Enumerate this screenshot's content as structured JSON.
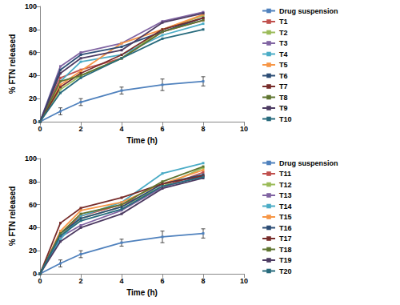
{
  "chart_data": [
    {
      "type": "line",
      "x_label": "Time (h)",
      "y_label": "% FTN released",
      "x": [
        0,
        1,
        2,
        4,
        6,
        8
      ],
      "xlim": [
        0,
        10
      ],
      "xticks": [
        0,
        2,
        4,
        6,
        8,
        10
      ],
      "ylim": [
        0,
        100
      ],
      "yticks": [
        0,
        20,
        40,
        60,
        80,
        100
      ],
      "grid": false,
      "legend": "right",
      "marker": "square",
      "series": [
        {
          "name": "Drug suspension",
          "color": "#4f81bd",
          "values": [
            0,
            9,
            17,
            27,
            32,
            35
          ],
          "errors": [
            0,
            3,
            3,
            3,
            5,
            4
          ]
        },
        {
          "name": "T1",
          "color": "#c0504d",
          "values": [
            0,
            38,
            45,
            55,
            78,
            88
          ]
        },
        {
          "name": "T2",
          "color": "#9bbb59",
          "values": [
            0,
            28,
            40,
            55,
            80,
            92
          ]
        },
        {
          "name": "T3",
          "color": "#8064a2",
          "values": [
            0,
            48,
            60,
            68,
            87,
            95
          ]
        },
        {
          "name": "T4",
          "color": "#4bacc6",
          "values": [
            0,
            35,
            52,
            58,
            75,
            85
          ]
        },
        {
          "name": "T5",
          "color": "#f79646",
          "values": [
            0,
            32,
            44,
            68,
            80,
            93
          ]
        },
        {
          "name": "T6",
          "color": "#2c4d75",
          "values": [
            0,
            45,
            58,
            65,
            78,
            90
          ]
        },
        {
          "name": "T7",
          "color": "#772c2a",
          "values": [
            0,
            30,
            42,
            58,
            80,
            90
          ]
        },
        {
          "name": "T8",
          "color": "#5f7530",
          "values": [
            0,
            35,
            40,
            55,
            78,
            88
          ]
        },
        {
          "name": "T9",
          "color": "#4d3b62",
          "values": [
            0,
            42,
            55,
            62,
            86,
            94
          ]
        },
        {
          "name": "T10",
          "color": "#276a7c",
          "values": [
            0,
            25,
            38,
            55,
            72,
            80
          ]
        }
      ]
    },
    {
      "type": "line",
      "x_label": "Time (h)",
      "y_label": "% FTN released",
      "x": [
        0,
        1,
        2,
        4,
        6,
        8
      ],
      "xlim": [
        0,
        10
      ],
      "xticks": [
        0,
        2,
        4,
        6,
        8,
        10
      ],
      "ylim": [
        0,
        100
      ],
      "yticks": [
        0,
        20,
        40,
        60,
        80,
        100
      ],
      "grid": false,
      "legend": "right",
      "marker": "square",
      "series": [
        {
          "name": "Drug suspension",
          "color": "#4f81bd",
          "values": [
            0,
            9,
            17,
            27,
            32,
            35
          ],
          "errors": [
            0,
            3,
            3,
            3,
            5,
            4
          ]
        },
        {
          "name": "T11",
          "color": "#c0504d",
          "values": [
            0,
            35,
            50,
            60,
            75,
            88
          ]
        },
        {
          "name": "T12",
          "color": "#9bbb59",
          "values": [
            0,
            33,
            48,
            58,
            76,
            92
          ]
        },
        {
          "name": "T13",
          "color": "#8064a2",
          "values": [
            0,
            32,
            42,
            55,
            75,
            85
          ]
        },
        {
          "name": "T14",
          "color": "#4bacc6",
          "values": [
            0,
            30,
            50,
            62,
            87,
            96
          ]
        },
        {
          "name": "T15",
          "color": "#f79646",
          "values": [
            0,
            37,
            55,
            62,
            78,
            90
          ]
        },
        {
          "name": "T16",
          "color": "#2c4d75",
          "values": [
            0,
            35,
            48,
            58,
            78,
            86
          ]
        },
        {
          "name": "T17",
          "color": "#772c2a",
          "values": [
            0,
            44,
            57,
            66,
            78,
            85
          ]
        },
        {
          "name": "T18",
          "color": "#5f7530",
          "values": [
            0,
            35,
            52,
            60,
            80,
            93
          ]
        },
        {
          "name": "T19",
          "color": "#4d3b62",
          "values": [
            0,
            28,
            40,
            52,
            74,
            83
          ]
        },
        {
          "name": "T20",
          "color": "#276a7c",
          "values": [
            0,
            33,
            46,
            56,
            76,
            84
          ]
        }
      ]
    }
  ]
}
